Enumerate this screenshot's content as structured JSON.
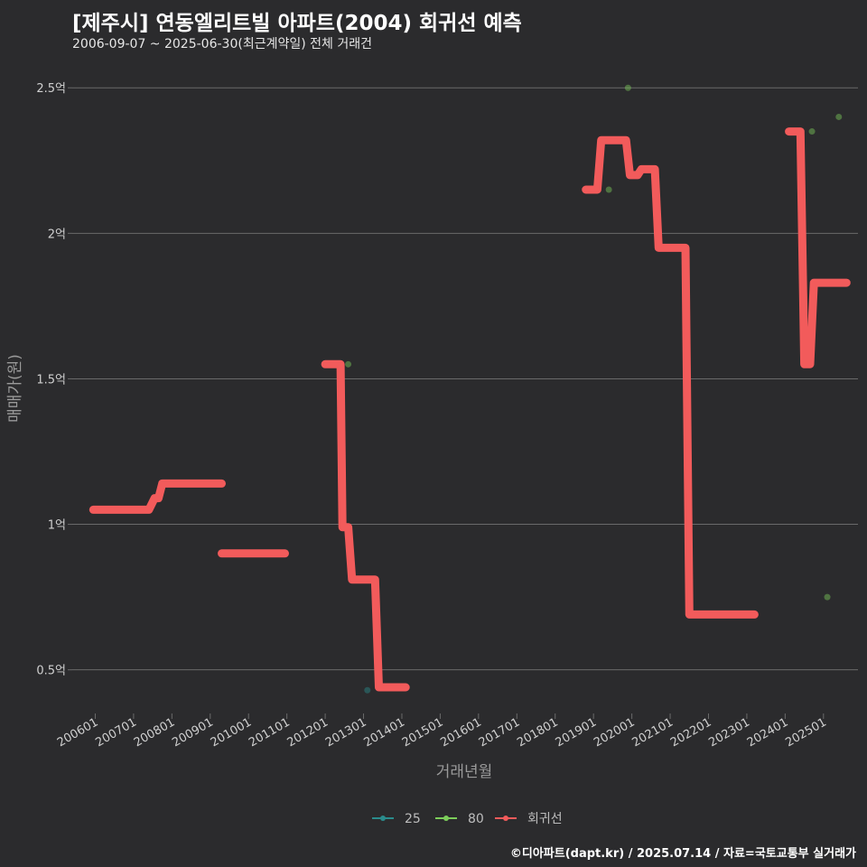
{
  "title": "[제주시] 연동엘리트빌 아파트(2004) 회귀선 예측",
  "subtitle": "2006-09-07 ~ 2025-06-30(최근계약일) 전체 거래건",
  "caption": "©디아파트(dapt.kr) / 2025.07.14 / 자료=국토교통부 실거래가",
  "colors": {
    "background": "#2b2b2d",
    "grid": "#6a6a6a",
    "series_25": "#2a8c8c",
    "series_80": "#7ccd5a",
    "regression": "#f25b5b"
  },
  "chart_data": {
    "type": "line",
    "xlabel": "거래년월",
    "ylabel": "매매가(원)",
    "x_range_years": [
      2005.4,
      2025.9
    ],
    "ylim": [
      0.35,
      2.6
    ],
    "y_unit": "억",
    "y_ticks": [
      {
        "value": 0.5,
        "label": "0.5억"
      },
      {
        "value": 1.0,
        "label": "1억"
      },
      {
        "value": 1.5,
        "label": "1.5억"
      },
      {
        "value": 2.0,
        "label": "2억"
      },
      {
        "value": 2.5,
        "label": "2.5억"
      }
    ],
    "x_ticks": [
      {
        "value": 2006.0,
        "label": "200601"
      },
      {
        "value": 2007.0,
        "label": "200701"
      },
      {
        "value": 2008.0,
        "label": "200801"
      },
      {
        "value": 2009.0,
        "label": "200901"
      },
      {
        "value": 2010.0,
        "label": "201001"
      },
      {
        "value": 2011.0,
        "label": "201101"
      },
      {
        "value": 2012.0,
        "label": "201201"
      },
      {
        "value": 2013.0,
        "label": "201301"
      },
      {
        "value": 2014.0,
        "label": "201401"
      },
      {
        "value": 2015.0,
        "label": "201501"
      },
      {
        "value": 2016.0,
        "label": "201601"
      },
      {
        "value": 2017.0,
        "label": "201701"
      },
      {
        "value": 2018.0,
        "label": "201801"
      },
      {
        "value": 2019.0,
        "label": "201901"
      },
      {
        "value": 2020.0,
        "label": "202001"
      },
      {
        "value": 2021.0,
        "label": "202101"
      },
      {
        "value": 2022.0,
        "label": "202201"
      },
      {
        "value": 2023.0,
        "label": "202301"
      },
      {
        "value": 2024.0,
        "label": "202401"
      },
      {
        "value": 2025.0,
        "label": "202501"
      }
    ],
    "legend": [
      {
        "name": "25",
        "color": "#2a8c8c"
      },
      {
        "name": "80",
        "color": "#7ccd5a"
      },
      {
        "name": "회귀선",
        "color": "#f25b5b"
      }
    ],
    "scatter": [
      {
        "series": "25",
        "x": 2013.1,
        "y": 0.43
      },
      {
        "series": "80",
        "x": 2012.6,
        "y": 1.55
      },
      {
        "series": "80",
        "x": 2019.4,
        "y": 2.15
      },
      {
        "series": "80",
        "x": 2019.9,
        "y": 2.5
      },
      {
        "series": "80",
        "x": 2024.7,
        "y": 2.35
      },
      {
        "series": "80",
        "x": 2025.1,
        "y": 0.75
      },
      {
        "series": "80",
        "x": 2025.4,
        "y": 2.4
      }
    ],
    "regression_segments": [
      [
        [
          2005.95,
          1.05
        ],
        [
          2007.4,
          1.05
        ],
        [
          2007.55,
          1.09
        ],
        [
          2007.65,
          1.09
        ],
        [
          2007.75,
          1.14
        ],
        [
          2009.3,
          1.14
        ]
      ],
      [
        [
          2009.3,
          0.9
        ],
        [
          2010.95,
          0.9
        ]
      ],
      [
        [
          2012.0,
          1.55
        ],
        [
          2012.4,
          1.55
        ],
        [
          2012.45,
          0.99
        ],
        [
          2012.6,
          0.99
        ],
        [
          2012.7,
          0.81
        ],
        [
          2013.3,
          0.81
        ],
        [
          2013.4,
          0.44
        ],
        [
          2014.1,
          0.44
        ]
      ],
      [
        [
          2018.8,
          2.15
        ],
        [
          2019.1,
          2.15
        ],
        [
          2019.2,
          2.32
        ],
        [
          2019.85,
          2.32
        ],
        [
          2019.95,
          2.2
        ],
        [
          2020.15,
          2.2
        ],
        [
          2020.25,
          2.22
        ],
        [
          2020.6,
          2.22
        ],
        [
          2020.7,
          1.95
        ],
        [
          2021.4,
          1.95
        ],
        [
          2021.5,
          0.69
        ],
        [
          2022.3,
          0.69
        ],
        [
          2023.2,
          0.69
        ]
      ],
      [
        [
          2024.1,
          2.35
        ],
        [
          2024.4,
          2.35
        ],
        [
          2024.5,
          1.55
        ],
        [
          2024.65,
          1.55
        ],
        [
          2024.75,
          1.83
        ],
        [
          2025.6,
          1.83
        ]
      ]
    ]
  }
}
